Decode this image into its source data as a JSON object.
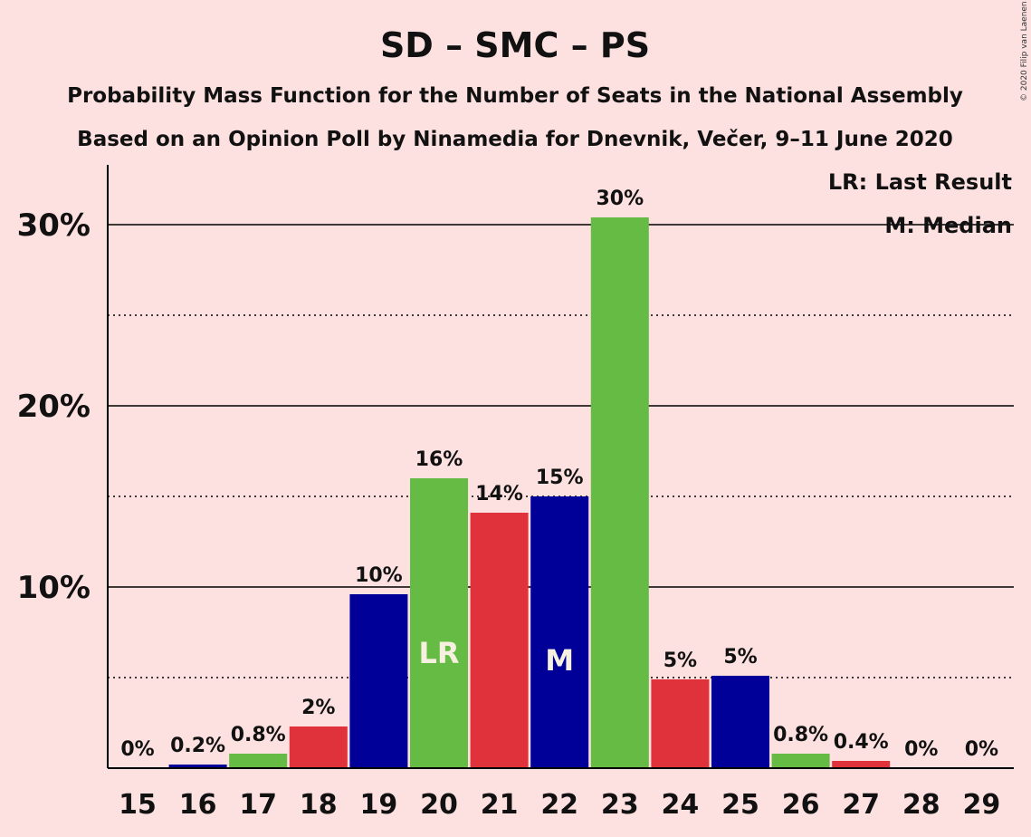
{
  "chart_data": {
    "type": "bar",
    "title": "SD – SMC – PS",
    "subtitle": "Probability Mass Function for the Number of Seats in the National Assembly",
    "subtitle2": "Based on an Opinion Poll by Ninamedia for Dnevnik, Večer, 9–11 June 2020",
    "copyright": "© 2020 Filip van Laenen",
    "ylim": [
      0,
      33
    ],
    "yticks": [
      {
        "value": 10,
        "label": "10%"
      },
      {
        "value": 20,
        "label": "20%"
      },
      {
        "value": 30,
        "label": "30%"
      }
    ],
    "minor_gridlines": [
      5,
      15,
      25
    ],
    "legend": {
      "placement": "top-right",
      "entries": [
        "LR: Last Result",
        "M: Median"
      ]
    },
    "colors": {
      "blue": "#000099",
      "green": "#66bb44",
      "red": "#e0323a"
    },
    "bars": [
      {
        "seats": "15",
        "value": 0.0,
        "label": "0%",
        "color": "blue",
        "marker": ""
      },
      {
        "seats": "16",
        "value": 0.2,
        "label": "0.2%",
        "color": "blue",
        "marker": ""
      },
      {
        "seats": "17",
        "value": 0.8,
        "label": "0.8%",
        "color": "green",
        "marker": ""
      },
      {
        "seats": "18",
        "value": 2.3,
        "label": "2%",
        "color": "red",
        "marker": ""
      },
      {
        "seats": "19",
        "value": 9.6,
        "label": "10%",
        "color": "blue",
        "marker": ""
      },
      {
        "seats": "20",
        "value": 16.0,
        "label": "16%",
        "color": "green",
        "marker": "LR"
      },
      {
        "seats": "21",
        "value": 14.1,
        "label": "14%",
        "color": "red",
        "marker": ""
      },
      {
        "seats": "22",
        "value": 15.0,
        "label": "15%",
        "color": "blue",
        "marker": "M"
      },
      {
        "seats": "23",
        "value": 30.4,
        "label": "30%",
        "color": "green",
        "marker": ""
      },
      {
        "seats": "24",
        "value": 4.9,
        "label": "5%",
        "color": "red",
        "marker": ""
      },
      {
        "seats": "25",
        "value": 5.1,
        "label": "5%",
        "color": "blue",
        "marker": ""
      },
      {
        "seats": "26",
        "value": 0.8,
        "label": "0.8%",
        "color": "green",
        "marker": ""
      },
      {
        "seats": "27",
        "value": 0.4,
        "label": "0.4%",
        "color": "red",
        "marker": ""
      },
      {
        "seats": "28",
        "value": 0.0,
        "label": "0%",
        "color": "blue",
        "marker": ""
      },
      {
        "seats": "29",
        "value": 0.0,
        "label": "0%",
        "color": "green",
        "marker": ""
      }
    ]
  }
}
